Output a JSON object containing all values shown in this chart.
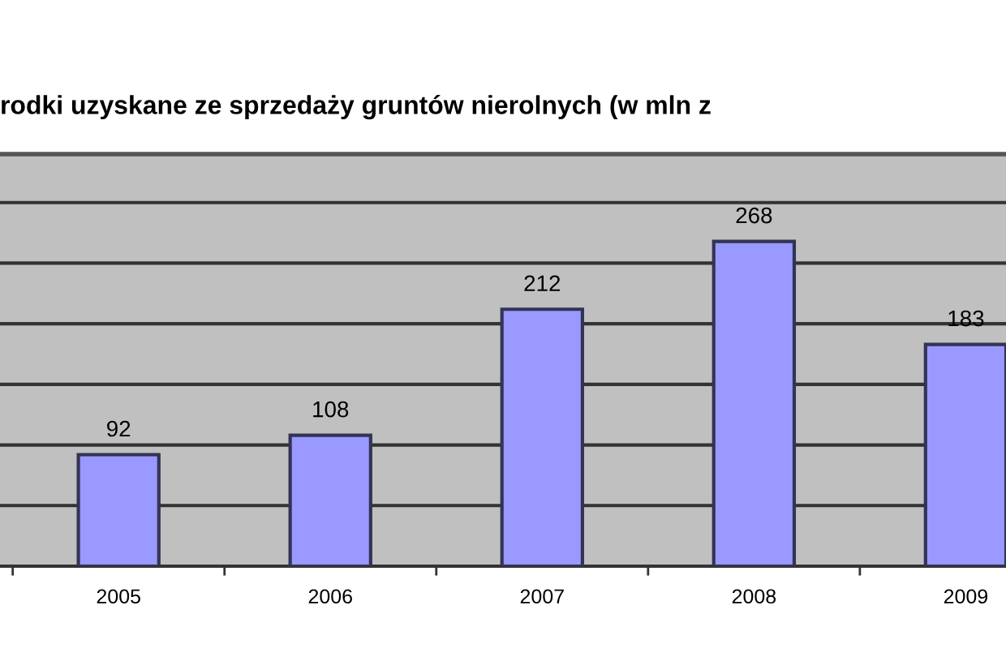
{
  "chart_data": {
    "type": "bar",
    "title": "rodki uzyskane ze sprzedaży gruntów nierolnych (w mln z",
    "categories": [
      "2005",
      "2006",
      "2007",
      "2008",
      "2009"
    ],
    "values": [
      92,
      108,
      212,
      268,
      183
    ],
    "color": "#9999ff",
    "data_labels": true,
    "grid": "y",
    "tick_labels": "x",
    "ylim": [
      0,
      340
    ],
    "yticks": [
      {
        "value": 0,
        "label": null
      },
      {
        "value": 50,
        "label": null
      },
      {
        "value": 100,
        "label": null
      },
      {
        "value": 150,
        "label": null
      },
      {
        "value": 200,
        "label": null
      },
      {
        "value": 250,
        "label": null
      },
      {
        "value": 300,
        "label": null
      }
    ]
  }
}
